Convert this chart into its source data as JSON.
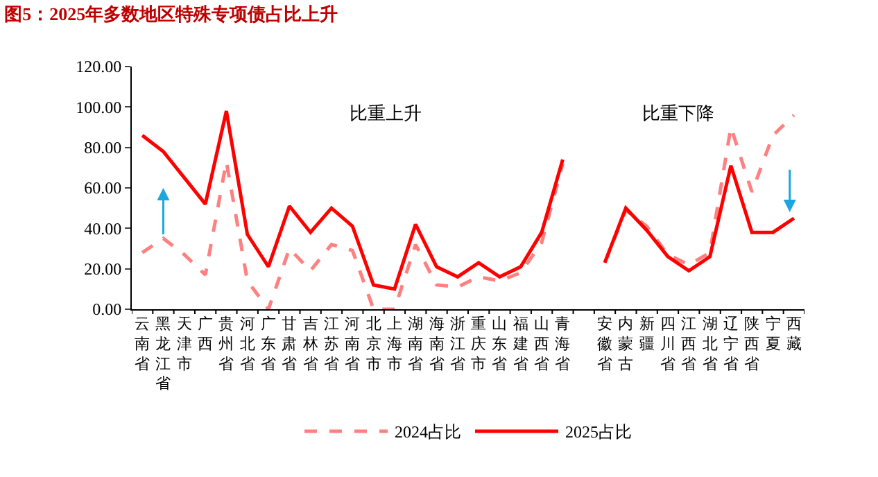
{
  "chart_data": {
    "type": "line",
    "title": "图5：2025年多数地区特殊专项债占比上升",
    "categories": [
      "云南省",
      "黑龙江省",
      "天津市",
      "广西",
      "贵州省",
      "河北省",
      "广东省",
      "甘肃省",
      "吉林省",
      "江苏省",
      "河南省",
      "北京市",
      "上海市",
      "湖南省",
      "海南省",
      "浙江省",
      "重庆市",
      "山东省",
      "福建省",
      "山西省",
      "青海省",
      null,
      "安徽省",
      "内蒙古",
      "新疆",
      "四川省",
      "江西省",
      "湖北省",
      "辽宁省",
      "陕西省",
      "宁夏",
      "西藏"
    ],
    "series": [
      {
        "name": "2024占比",
        "color": "#ff8080",
        "line_style": "dashed",
        "values": [
          28,
          35,
          27,
          17,
          73,
          14,
          0,
          30,
          19,
          32,
          29,
          0,
          0,
          32,
          12,
          11,
          16,
          14,
          18,
          33,
          72,
          null,
          23,
          49,
          41,
          27,
          22,
          28,
          90,
          58,
          86,
          96
        ]
      },
      {
        "name": "2025占比",
        "color": "#ff0000",
        "line_style": "solid",
        "values": [
          86,
          78,
          65,
          52,
          98,
          37,
          21,
          51,
          38,
          50,
          41,
          12,
          10,
          42,
          21,
          16,
          23,
          16,
          21,
          38,
          74,
          null,
          23,
          50,
          39,
          26,
          19,
          26,
          71,
          38,
          38,
          45
        ]
      }
    ],
    "ylim": [
      0,
      120
    ],
    "yticks": [
      {
        "value": 0,
        "label": "0.00"
      },
      {
        "value": 20,
        "label": "20.00"
      },
      {
        "value": 40,
        "label": "40.00"
      },
      {
        "value": 60,
        "label": "60.00"
      },
      {
        "value": 80,
        "label": "80.00"
      },
      {
        "value": 100,
        "label": "100.00"
      },
      {
        "value": 120,
        "label": "120.00"
      }
    ],
    "annotations": [
      "比重上升",
      "比重下降"
    ],
    "legend": "bottom",
    "marker": "none"
  }
}
